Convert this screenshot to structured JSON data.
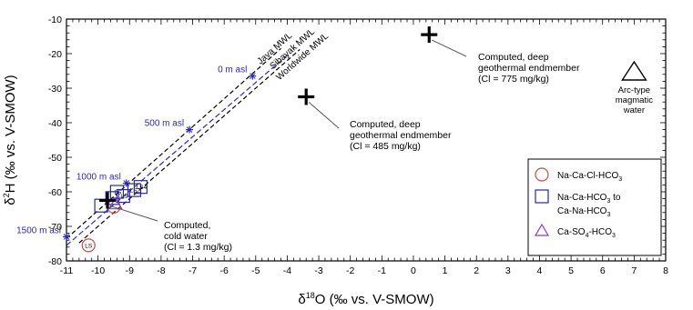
{
  "chart_data": {
    "type": "scatter",
    "xlabel_prefix": "δ",
    "xlabel_sup": "18",
    "xlabel_rest": "O (‰ vs. V-SMOW)",
    "ylabel_prefix": "δ",
    "ylabel_sup": "2",
    "ylabel_rest": "H (‰ vs. V-SMOW)",
    "xlim": [
      -11,
      8
    ],
    "ylim": [
      -80,
      -10
    ],
    "xticks": [
      "-11",
      "-10",
      "-9",
      "-8",
      "-7",
      "-6",
      "-5",
      "-4",
      "-3",
      "-2",
      "-1",
      "0",
      "1",
      "2",
      "3",
      "4",
      "5",
      "6",
      "7",
      "8"
    ],
    "yticks": [
      "-10",
      "-20",
      "-30",
      "-40",
      "-50",
      "-60",
      "-70",
      "-80"
    ],
    "lines": [
      {
        "name": "Java MWL",
        "x": [
          -11,
          -4.2
        ],
        "y": [
          -73.5,
          -18.5
        ],
        "color": "#000000",
        "dash": "5,3"
      },
      {
        "name": "Sibayak MWL",
        "x": [
          -11,
          -4.0
        ],
        "y": [
          -75.5,
          -20.5
        ],
        "color": "#2b2bb0",
        "dash": "6,3"
      },
      {
        "name": "Worldwide MWL",
        "x": [
          -10.6,
          -3.6
        ],
        "y": [
          -74.8,
          -18.8
        ],
        "color": "#000000",
        "dash": "5,3"
      }
    ],
    "elevation_points": [
      {
        "label": "0 m asl",
        "x": -5.1,
        "y": -26.5
      },
      {
        "label": "500 m asl",
        "x": -7.1,
        "y": -42
      },
      {
        "label": "1000 m asl",
        "x": -9.1,
        "y": -57.5
      },
      {
        "label": "1500 m asl",
        "x": -11.0,
        "y": -73
      }
    ],
    "computed_endmembers": [
      {
        "x": 0.5,
        "y": -14.5,
        "lines": [
          "Computed, deep",
          "geothermal endmember",
          "(Cl = 775 mg/kg)"
        ]
      },
      {
        "x": -3.4,
        "y": -32.5,
        "lines": [
          "Computed, deep",
          "geothermal endmember",
          "(Cl = 485 mg/kg)"
        ]
      },
      {
        "x": -9.7,
        "y": -62.5,
        "lines": [
          "Computed,",
          "cold water",
          "(Cl = 1.3 mg/kg)"
        ]
      }
    ],
    "arc_type": {
      "x": 7.0,
      "y": -25,
      "lines": [
        "Arc-type",
        "magmatic",
        "water"
      ]
    },
    "circle_samples": [
      {
        "x": -10.3,
        "y": -75.5,
        "label": "LS"
      },
      {
        "x": -9.5,
        "y": -64.3,
        "label": ""
      }
    ],
    "square_samples": [
      {
        "x": -9.9,
        "y": -64.0,
        "label": ""
      },
      {
        "x": -9.55,
        "y": -61.8,
        "label": ""
      },
      {
        "x": -9.4,
        "y": -60.0,
        "label": "LS"
      },
      {
        "x": -9.2,
        "y": -61.2,
        "label": "LS"
      },
      {
        "x": -8.85,
        "y": -59.5,
        "label": "LS2"
      },
      {
        "x": -8.65,
        "y": -58.6,
        "label": "LS4"
      }
    ],
    "triangle_samples": [
      {
        "x": -9.45,
        "y": -63.6,
        "label": ""
      }
    ],
    "legend": {
      "placement": "bottom-right",
      "entries": [
        {
          "marker": "circle",
          "color": "#c0504d",
          "parts": [
            [
              "Na-Ca-Cl-HCO",
              ""
            ],
            [
              "3",
              "sub"
            ]
          ]
        },
        {
          "marker": "square",
          "color": "#2b2b8f",
          "parts": [
            [
              "Na-Ca-HCO",
              ""
            ],
            [
              "3",
              "sub"
            ],
            [
              " to",
              ""
            ]
          ]
        },
        {
          "marker": "",
          "color": "",
          "parts": [
            [
              "Ca-Na-HCO",
              ""
            ],
            [
              "3",
              "sub"
            ]
          ]
        },
        {
          "marker": "triangle",
          "color": "#8b3fb5",
          "parts": [
            [
              "Ca-SO",
              ""
            ],
            [
              "4",
              "sub"
            ],
            [
              "-HCO",
              ""
            ],
            [
              "3",
              "sub"
            ]
          ]
        }
      ]
    },
    "colors": {
      "circle": "#c0504d",
      "square": "#2b2b8f",
      "triangle": "#8b3fb5",
      "sibayak": "#2b2bb0",
      "elevation": "#2b2bb0"
    }
  }
}
